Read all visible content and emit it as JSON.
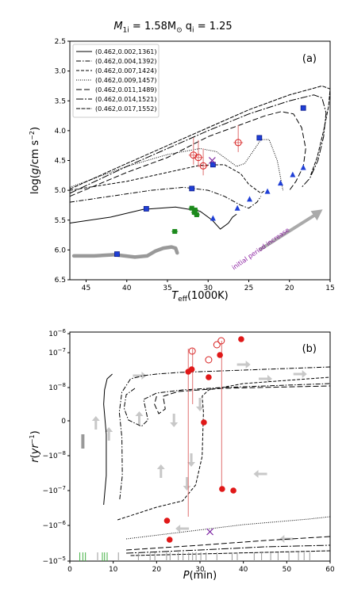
{
  "figure_title": "M1i = 1.58M⊙ qi = 1.25",
  "figure_title_parts": {
    "m": "M",
    "m_sub": "1i",
    "m_val": " = 1.58M",
    "sun": "⊙",
    "q": "  q",
    "q_sub": "i",
    "q_val": " = 1.25"
  },
  "chart_data": [
    {
      "panel": "(a)",
      "type": "line",
      "xlabel": "T_eff(1000K)",
      "xlabel_parts": {
        "main": "T",
        "sub": "eff",
        "rest": "(1000K)"
      },
      "ylabel": "log(g/cm s^-2)",
      "xlim": [
        47,
        15
      ],
      "ylim": [
        6.5,
        2.5
      ],
      "xticks": [
        45,
        40,
        35,
        30,
        25,
        20,
        15
      ],
      "yticks": [
        2.5,
        3.0,
        3.5,
        4.0,
        4.5,
        5.0,
        5.5,
        6.0,
        6.5
      ],
      "legend_position": "top-left",
      "annotation": "initial period increase",
      "series": [
        {
          "name": "(0.462,0.002,1361)",
          "dash": "solid",
          "x": [
            47,
            42,
            38,
            34,
            31,
            29.5,
            28.5,
            27.5,
            27,
            26.5
          ],
          "y": [
            5.55,
            5.45,
            5.32,
            5.28,
            5.35,
            5.5,
            5.65,
            5.55,
            5.45,
            5.4
          ]
        },
        {
          "name": "(0.462,0.004,1392)",
          "dash": "dashdot",
          "x": [
            47,
            42,
            37,
            33,
            30,
            28,
            26,
            25,
            24.5,
            24,
            23.5
          ],
          "y": [
            5.2,
            5.1,
            5.0,
            4.95,
            5.0,
            5.1,
            5.25,
            5.3,
            5.25,
            5.2,
            5.1
          ]
        },
        {
          "name": "(0.462,0.007,1424)",
          "dash": "dashed",
          "x": [
            47,
            40,
            35,
            31,
            28,
            26,
            25,
            24,
            23.5,
            23
          ],
          "y": [
            5.0,
            4.85,
            4.7,
            4.58,
            4.57,
            4.72,
            4.9,
            5.0,
            5.05,
            5.0
          ]
        },
        {
          "name": "(0.462,0.009,1457)",
          "dash": "dotted",
          "x": [
            47,
            40,
            35,
            31,
            29,
            27.5,
            26.5,
            25.5,
            24.5,
            23.5,
            22.5,
            21.5,
            20.8
          ],
          "y": [
            4.95,
            4.6,
            4.4,
            4.3,
            4.35,
            4.5,
            4.6,
            4.55,
            4.35,
            4.15,
            4.15,
            4.5,
            5.0
          ]
        },
        {
          "name": "(0.462,0.011,1489)",
          "dash": "longdash",
          "x": [
            47,
            40,
            35,
            30,
            26,
            23,
            21,
            19.5,
            18.5,
            18,
            18.3,
            19.2,
            20
          ],
          "y": [
            5.1,
            4.7,
            4.45,
            4.1,
            3.9,
            3.75,
            3.68,
            3.72,
            3.95,
            4.3,
            4.6,
            4.85,
            5.0
          ]
        },
        {
          "name": "(0.462,0.014,1521)",
          "dash": "dashdotlong",
          "x": [
            47,
            40,
            35,
            30,
            25,
            20,
            17,
            16,
            15.5,
            15.8,
            16.5,
            17.5,
            18.5
          ],
          "y": [
            5.05,
            4.6,
            4.3,
            4.0,
            3.72,
            3.5,
            3.4,
            3.45,
            3.7,
            4.1,
            4.5,
            4.8,
            4.95
          ]
        },
        {
          "name": "(0.462,0.017,1552)",
          "dash": "dense",
          "x": [
            47,
            40,
            35,
            30,
            25,
            20,
            16,
            15,
            15.2,
            15.8,
            16.6,
            17.4
          ],
          "y": [
            4.98,
            4.55,
            4.25,
            3.95,
            3.65,
            3.4,
            3.25,
            3.3,
            3.6,
            4.0,
            4.45,
            4.75
          ]
        }
      ],
      "gray_track": {
        "x": [
          46.5,
          44,
          41.5,
          39,
          37.5,
          36.5,
          35.5,
          34.5,
          34,
          33.8
        ],
        "y": [
          6.1,
          6.1,
          6.08,
          6.12,
          6.1,
          6.02,
          5.97,
          5.95,
          5.97,
          6.05
        ]
      },
      "blue_squares": {
        "x": [
          41.2,
          37.6,
          32,
          29.4,
          23.7,
          18.3
        ],
        "y": [
          6.07,
          5.31,
          4.97,
          4.57,
          4.12,
          3.62
        ]
      },
      "blue_triangles": {
        "x": [
          29.4,
          26.4,
          24.9,
          22.7,
          21.1,
          19.6,
          18.3
        ],
        "y": [
          5.47,
          5.3,
          5.15,
          5.02,
          4.88,
          4.74,
          4.62
        ]
      },
      "green_points": {
        "x": [
          32,
          31.6,
          31.7,
          31.4,
          34.1
        ],
        "y": [
          5.3,
          5.33,
          5.37,
          5.41,
          5.69
        ]
      },
      "red_open_circles": {
        "x": [
          31.8,
          31.2,
          30.6,
          26.3
        ],
        "y": [
          4.41,
          4.45,
          4.59,
          4.2
        ]
      },
      "purple_cross": {
        "x": 29.5,
        "y": 4.5
      }
    },
    {
      "panel": "(b)",
      "type": "line",
      "xlabel": "P(min)",
      "ylabel": "r(yr^-1)",
      "xlim": [
        0,
        60
      ],
      "yscale": "symlog",
      "yticks": [
        "-10^-5",
        "-10^-6",
        "-10^-7",
        "-10^-8",
        "0",
        "10^-8",
        "10^-7",
        "10^-6"
      ],
      "xticks": [
        0,
        10,
        20,
        30,
        40,
        50,
        60
      ],
      "red_filled_points": {
        "x": [
          27.3,
          28.2,
          30.8,
          32.2,
          34.7,
          35.2,
          37.8,
          39.4,
          22.3,
          23.1
        ],
        "y_log": [
          -6.8,
          -6.9,
          -8.3,
          -7.3,
          -6.6,
          6.7,
          6.75,
          -5.8,
          6.4,
          5.8
        ]
      },
      "red_open_points": {
        "x": [
          28.3,
          32.2,
          33.9,
          34.9
        ],
        "y_log": [
          -6.5,
          -6.8,
          -6.4,
          -6.2
        ]
      },
      "purple_cross": {
        "x": 32.3,
        "y_log": 6.0
      }
    }
  ]
}
